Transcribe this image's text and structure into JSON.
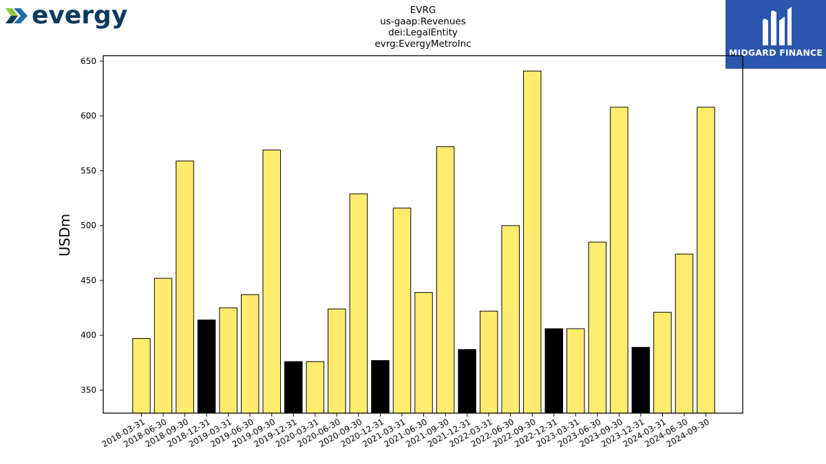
{
  "logos": {
    "left_text": "evergy",
    "right_text": "MIDGARD FINANCE"
  },
  "colors": {
    "bar_default": "#ffec6e",
    "bar_highlight": "#000000",
    "logo_blue": "#0b3a5c",
    "logo_green": "#8cc63f",
    "brand_box": "#2b56ad"
  },
  "chart_data": {
    "type": "bar",
    "title": [
      "EVRG",
      "us-gaap:Revenues",
      "dei:LegalEntity",
      "evrg:EvergyMetroInc"
    ],
    "xlabel": "",
    "ylabel": "USDm",
    "ylim": [
      329,
      655
    ],
    "yticks": [
      350,
      400,
      450,
      500,
      550,
      600,
      650
    ],
    "grid": false,
    "categories": [
      "2018-03-31",
      "2018-06-30",
      "2018-09-30",
      "2018-12-31",
      "2019-03-31",
      "2019-06-30",
      "2019-09-30",
      "2019-12-31",
      "2020-03-31",
      "2020-06-30",
      "2020-09-30",
      "2020-12-31",
      "2021-03-31",
      "2021-06-30",
      "2021-09-30",
      "2021-12-31",
      "2022-03-31",
      "2022-06-30",
      "2022-09-30",
      "2022-12-31",
      "2023-03-31",
      "2023-06-30",
      "2023-09-30",
      "2023-12-31",
      "2024-03-31",
      "2024-06-30",
      "2024-09-30"
    ],
    "values": [
      397,
      452,
      559,
      414,
      425,
      437,
      569,
      376,
      376,
      424,
      529,
      377,
      516,
      439,
      572,
      387,
      422,
      500,
      641,
      406,
      406,
      485,
      608,
      389,
      421,
      474,
      608
    ],
    "highlight": [
      false,
      false,
      false,
      true,
      false,
      false,
      false,
      true,
      false,
      false,
      false,
      true,
      false,
      false,
      false,
      true,
      false,
      false,
      false,
      true,
      false,
      false,
      false,
      true,
      false,
      false,
      false
    ]
  }
}
